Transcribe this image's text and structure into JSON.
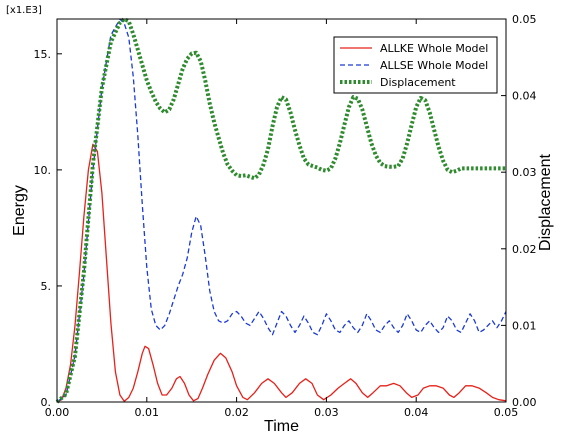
{
  "chart_data": {
    "type": "line",
    "xlabel": "Time",
    "ylabel_left": "Energy",
    "ylabel_right": "Displacement",
    "multiplier_label": "[x1.E3]",
    "xlim": [
      0,
      0.05
    ],
    "ylim_left": [
      0,
      16.5
    ],
    "ylim_right": [
      0,
      0.05
    ],
    "x_ticks": [
      0,
      0.01,
      0.02,
      0.03,
      0.04,
      0.05
    ],
    "x_tick_labels": [
      "0.00",
      "0.01",
      "0.02",
      "0.03",
      "0.04",
      "0.05"
    ],
    "y_left_ticks": [
      0,
      5,
      10,
      15
    ],
    "y_left_tick_labels": [
      "0.",
      "5.",
      "10.",
      "15."
    ],
    "y_right_ticks": [
      0,
      0.01,
      0.02,
      0.03,
      0.04,
      0.05
    ],
    "y_right_tick_labels": [
      "0.00",
      "0.01",
      "0.02",
      "0.03",
      "0.04",
      "0.05"
    ],
    "legend_position": "top-right",
    "series": [
      {
        "name": "ALLKE Whole Model",
        "axis": "left",
        "color": "#e8201a",
        "style": "solid",
        "points": [
          [
            0,
            0
          ],
          [
            0.0005,
            0.1
          ],
          [
            0.001,
            0.6
          ],
          [
            0.0015,
            1.6
          ],
          [
            0.002,
            3.3
          ],
          [
            0.0025,
            5.6
          ],
          [
            0.003,
            8.0
          ],
          [
            0.0035,
            10.0
          ],
          [
            0.004,
            11.1
          ],
          [
            0.0045,
            10.8
          ],
          [
            0.005,
            9.0
          ],
          [
            0.0055,
            6.2
          ],
          [
            0.006,
            3.4
          ],
          [
            0.0065,
            1.3
          ],
          [
            0.007,
            0.3
          ],
          [
            0.0075,
            0.03
          ],
          [
            0.008,
            0.2
          ],
          [
            0.0085,
            0.6
          ],
          [
            0.009,
            1.3
          ],
          [
            0.0095,
            2.1
          ],
          [
            0.0098,
            2.4
          ],
          [
            0.0102,
            2.3
          ],
          [
            0.0107,
            1.6
          ],
          [
            0.0112,
            0.8
          ],
          [
            0.0117,
            0.3
          ],
          [
            0.0122,
            0.3
          ],
          [
            0.0128,
            0.6
          ],
          [
            0.0133,
            1.0
          ],
          [
            0.0137,
            1.1
          ],
          [
            0.0142,
            0.8
          ],
          [
            0.0147,
            0.3
          ],
          [
            0.0152,
            0.05
          ],
          [
            0.0157,
            0.15
          ],
          [
            0.0162,
            0.6
          ],
          [
            0.0168,
            1.2
          ],
          [
            0.0175,
            1.8
          ],
          [
            0.0182,
            2.1
          ],
          [
            0.0188,
            1.9
          ],
          [
            0.0195,
            1.3
          ],
          [
            0.02,
            0.7
          ],
          [
            0.0207,
            0.2
          ],
          [
            0.0212,
            0.1
          ],
          [
            0.022,
            0.4
          ],
          [
            0.0228,
            0.8
          ],
          [
            0.0235,
            1.0
          ],
          [
            0.0242,
            0.8
          ],
          [
            0.025,
            0.4
          ],
          [
            0.0255,
            0.2
          ],
          [
            0.0262,
            0.4
          ],
          [
            0.027,
            0.8
          ],
          [
            0.0277,
            1.0
          ],
          [
            0.0284,
            0.8
          ],
          [
            0.029,
            0.3
          ],
          [
            0.0297,
            0.1
          ],
          [
            0.0305,
            0.3
          ],
          [
            0.0313,
            0.6
          ],
          [
            0.032,
            0.8
          ],
          [
            0.0327,
            1.0
          ],
          [
            0.0333,
            0.8
          ],
          [
            0.034,
            0.4
          ],
          [
            0.0346,
            0.2
          ],
          [
            0.0352,
            0.4
          ],
          [
            0.036,
            0.7
          ],
          [
            0.0367,
            0.7
          ],
          [
            0.0375,
            0.8
          ],
          [
            0.0382,
            0.7
          ],
          [
            0.0389,
            0.4
          ],
          [
            0.0395,
            0.2
          ],
          [
            0.0402,
            0.3
          ],
          [
            0.0408,
            0.6
          ],
          [
            0.0415,
            0.7
          ],
          [
            0.0422,
            0.7
          ],
          [
            0.043,
            0.6
          ],
          [
            0.0437,
            0.3
          ],
          [
            0.0442,
            0.2
          ],
          [
            0.0448,
            0.4
          ],
          [
            0.0455,
            0.7
          ],
          [
            0.0462,
            0.7
          ],
          [
            0.047,
            0.6
          ],
          [
            0.0478,
            0.4
          ],
          [
            0.0485,
            0.2
          ],
          [
            0.0492,
            0.1
          ],
          [
            0.05,
            0.05
          ]
        ]
      },
      {
        "name": "ALLSE Whole Model",
        "axis": "left",
        "color": "#1a3ad8",
        "style": "dashed",
        "points": [
          [
            0,
            0
          ],
          [
            0.001,
            0.3
          ],
          [
            0.002,
            2.0
          ],
          [
            0.003,
            5.5
          ],
          [
            0.004,
            10.0
          ],
          [
            0.005,
            13.5
          ],
          [
            0.006,
            15.8
          ],
          [
            0.007,
            16.5
          ],
          [
            0.0075,
            16.3
          ],
          [
            0.008,
            15.7
          ],
          [
            0.0085,
            14.0
          ],
          [
            0.009,
            11.5
          ],
          [
            0.0095,
            8.5
          ],
          [
            0.01,
            5.8
          ],
          [
            0.0105,
            4.0
          ],
          [
            0.011,
            3.3
          ],
          [
            0.0115,
            3.1
          ],
          [
            0.012,
            3.3
          ],
          [
            0.0125,
            3.8
          ],
          [
            0.013,
            4.4
          ],
          [
            0.0135,
            5.0
          ],
          [
            0.014,
            5.5
          ],
          [
            0.0145,
            6.2
          ],
          [
            0.015,
            7.3
          ],
          [
            0.0155,
            8.0
          ],
          [
            0.016,
            7.6
          ],
          [
            0.0165,
            6.3
          ],
          [
            0.017,
            4.8
          ],
          [
            0.0175,
            3.9
          ],
          [
            0.018,
            3.5
          ],
          [
            0.0185,
            3.4
          ],
          [
            0.019,
            3.5
          ],
          [
            0.0195,
            3.8
          ],
          [
            0.02,
            3.9
          ],
          [
            0.0205,
            3.7
          ],
          [
            0.021,
            3.4
          ],
          [
            0.0215,
            3.3
          ],
          [
            0.022,
            3.6
          ],
          [
            0.0225,
            3.9
          ],
          [
            0.023,
            3.6
          ],
          [
            0.0235,
            3.2
          ],
          [
            0.024,
            2.9
          ],
          [
            0.0245,
            3.4
          ],
          [
            0.025,
            3.9
          ],
          [
            0.0255,
            3.7
          ],
          [
            0.026,
            3.3
          ],
          [
            0.0265,
            3.0
          ],
          [
            0.027,
            3.3
          ],
          [
            0.0275,
            3.7
          ],
          [
            0.028,
            3.4
          ],
          [
            0.0285,
            3.0
          ],
          [
            0.029,
            2.9
          ],
          [
            0.0295,
            3.3
          ],
          [
            0.03,
            3.8
          ],
          [
            0.0305,
            3.5
          ],
          [
            0.031,
            3.1
          ],
          [
            0.0315,
            3.0
          ],
          [
            0.032,
            3.3
          ],
          [
            0.0325,
            3.5
          ],
          [
            0.033,
            3.2
          ],
          [
            0.0335,
            3.0
          ],
          [
            0.034,
            3.3
          ],
          [
            0.0345,
            3.8
          ],
          [
            0.035,
            3.5
          ],
          [
            0.0355,
            3.1
          ],
          [
            0.036,
            3.0
          ],
          [
            0.0365,
            3.3
          ],
          [
            0.037,
            3.5
          ],
          [
            0.0375,
            3.2
          ],
          [
            0.038,
            3.0
          ],
          [
            0.0385,
            3.3
          ],
          [
            0.039,
            3.8
          ],
          [
            0.0395,
            3.5
          ],
          [
            0.04,
            3.1
          ],
          [
            0.0405,
            3.0
          ],
          [
            0.041,
            3.3
          ],
          [
            0.0415,
            3.5
          ],
          [
            0.042,
            3.2
          ],
          [
            0.0425,
            3.0
          ],
          [
            0.043,
            3.2
          ],
          [
            0.0435,
            3.7
          ],
          [
            0.044,
            3.5
          ],
          [
            0.0445,
            3.1
          ],
          [
            0.045,
            3.0
          ],
          [
            0.0455,
            3.4
          ],
          [
            0.046,
            3.8
          ],
          [
            0.0465,
            3.5
          ],
          [
            0.047,
            3.0
          ],
          [
            0.0475,
            3.1
          ],
          [
            0.048,
            3.3
          ],
          [
            0.0485,
            3.5
          ],
          [
            0.049,
            3.2
          ],
          [
            0.0495,
            3.5
          ],
          [
            0.05,
            3.9
          ]
        ]
      },
      {
        "name": "Displacement",
        "axis": "right",
        "color": "#2e8b2e",
        "style": "dotted",
        "points": [
          [
            0,
            0
          ],
          [
            0.001,
            0.001
          ],
          [
            0.002,
            0.006
          ],
          [
            0.003,
            0.017
          ],
          [
            0.004,
            0.031
          ],
          [
            0.005,
            0.041
          ],
          [
            0.006,
            0.047
          ],
          [
            0.007,
            0.0495
          ],
          [
            0.0075,
            0.05
          ],
          [
            0.008,
            0.0497
          ],
          [
            0.0085,
            0.048
          ],
          [
            0.009,
            0.046
          ],
          [
            0.0095,
            0.044
          ],
          [
            0.01,
            0.042
          ],
          [
            0.0105,
            0.0405
          ],
          [
            0.011,
            0.0392
          ],
          [
            0.0115,
            0.0383
          ],
          [
            0.012,
            0.0378
          ],
          [
            0.0125,
            0.0382
          ],
          [
            0.013,
            0.0395
          ],
          [
            0.0135,
            0.0415
          ],
          [
            0.014,
            0.0435
          ],
          [
            0.0145,
            0.0448
          ],
          [
            0.015,
            0.0455
          ],
          [
            0.0155,
            0.0456
          ],
          [
            0.016,
            0.0445
          ],
          [
            0.0165,
            0.042
          ],
          [
            0.017,
            0.039
          ],
          [
            0.0175,
            0.0365
          ],
          [
            0.018,
            0.0345
          ],
          [
            0.0185,
            0.0325
          ],
          [
            0.019,
            0.031
          ],
          [
            0.0195,
            0.0302
          ],
          [
            0.02,
            0.0296
          ],
          [
            0.0205,
            0.0295
          ],
          [
            0.021,
            0.0296
          ],
          [
            0.0215,
            0.0294
          ],
          [
            0.022,
            0.0292
          ],
          [
            0.0225,
            0.0297
          ],
          [
            0.023,
            0.031
          ],
          [
            0.0235,
            0.033
          ],
          [
            0.024,
            0.036
          ],
          [
            0.0245,
            0.0385
          ],
          [
            0.025,
            0.0398
          ],
          [
            0.0255,
            0.0395
          ],
          [
            0.026,
            0.0378
          ],
          [
            0.0265,
            0.0355
          ],
          [
            0.027,
            0.0335
          ],
          [
            0.0275,
            0.0318
          ],
          [
            0.028,
            0.031
          ],
          [
            0.0285,
            0.0308
          ],
          [
            0.029,
            0.0306
          ],
          [
            0.0295,
            0.0303
          ],
          [
            0.03,
            0.0302
          ],
          [
            0.0305,
            0.0305
          ],
          [
            0.031,
            0.0318
          ],
          [
            0.0315,
            0.0338
          ],
          [
            0.032,
            0.0362
          ],
          [
            0.0325,
            0.0385
          ],
          [
            0.033,
            0.0398
          ],
          [
            0.0335,
            0.0396
          ],
          [
            0.034,
            0.0382
          ],
          [
            0.0345,
            0.036
          ],
          [
            0.035,
            0.0338
          ],
          [
            0.0355,
            0.0322
          ],
          [
            0.036,
            0.0312
          ],
          [
            0.0365,
            0.0308
          ],
          [
            0.037,
            0.0307
          ],
          [
            0.0375,
            0.0307
          ],
          [
            0.038,
            0.0308
          ],
          [
            0.0385,
            0.0318
          ],
          [
            0.039,
            0.0338
          ],
          [
            0.0395,
            0.0362
          ],
          [
            0.04,
            0.0385
          ],
          [
            0.0405,
            0.0397
          ],
          [
            0.041,
            0.0394
          ],
          [
            0.0415,
            0.0378
          ],
          [
            0.042,
            0.0355
          ],
          [
            0.0425,
            0.0333
          ],
          [
            0.043,
            0.0315
          ],
          [
            0.0435,
            0.0303
          ],
          [
            0.044,
            0.03
          ],
          [
            0.0445,
            0.0302
          ],
          [
            0.045,
            0.0305
          ],
          [
            0.05,
            0.0305
          ]
        ]
      }
    ]
  }
}
